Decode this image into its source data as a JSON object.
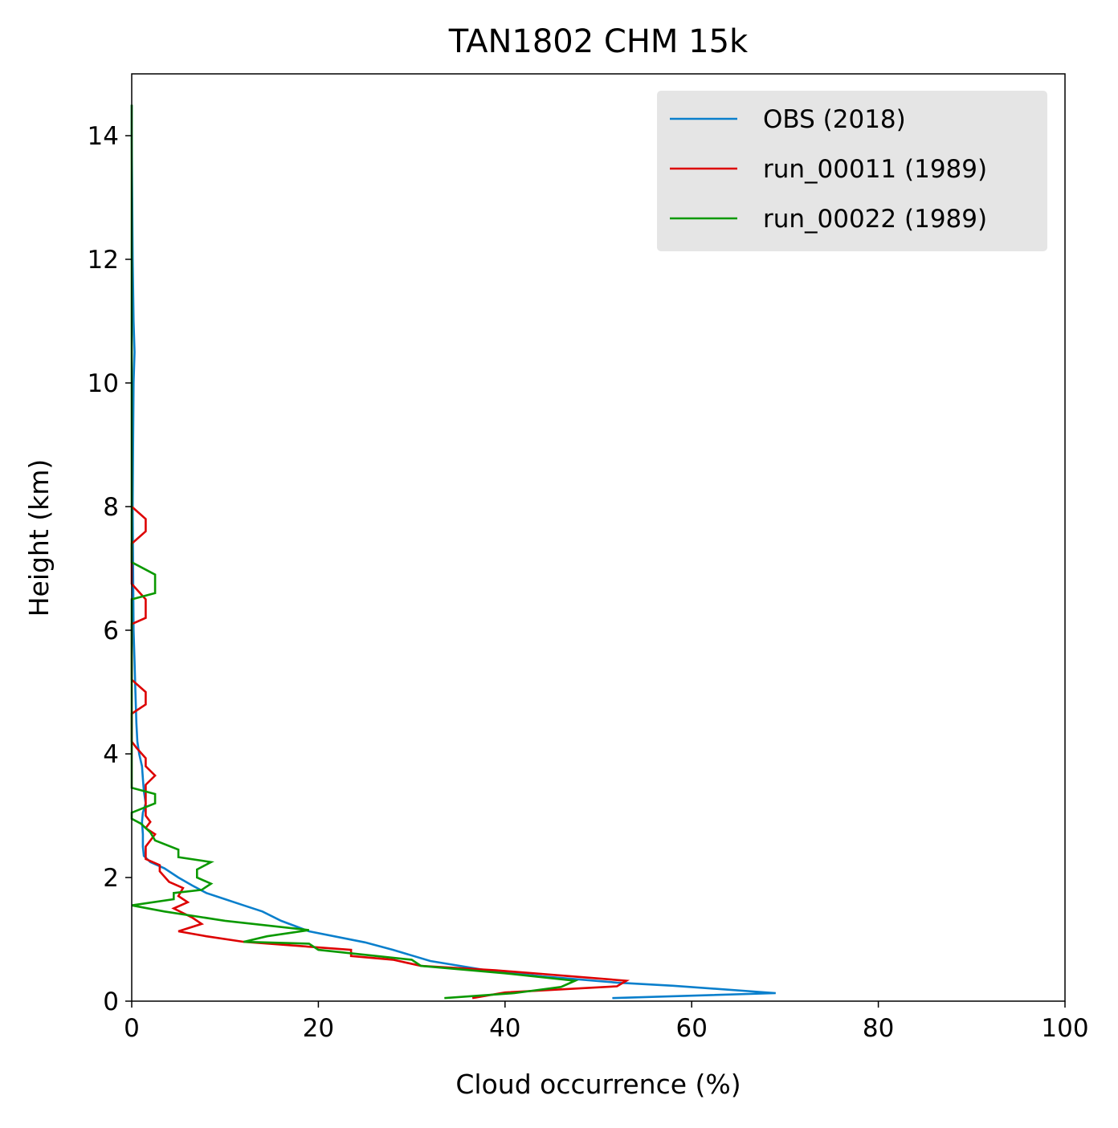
{
  "chart_data": {
    "type": "line",
    "title": "TAN1802 CHM 15k",
    "xlabel": "Cloud occurrence (%)",
    "ylabel": "Height (km)",
    "xlim": [
      0,
      100
    ],
    "ylim": [
      0,
      15
    ],
    "x_ticks": [
      0,
      20,
      40,
      60,
      80,
      100
    ],
    "y_ticks": [
      0,
      2,
      4,
      6,
      8,
      10,
      12,
      14
    ],
    "grid": false,
    "legend_position": "top-right",
    "series": [
      {
        "name": "OBS (2018)",
        "color": "#0a7fcc",
        "points": [
          [
            51.5,
            0.05
          ],
          [
            69.0,
            0.13
          ],
          [
            58.0,
            0.25
          ],
          [
            52.0,
            0.3
          ],
          [
            44.0,
            0.4
          ],
          [
            38.0,
            0.5
          ],
          [
            32.0,
            0.65
          ],
          [
            28.0,
            0.83
          ],
          [
            25.0,
            0.95
          ],
          [
            19.0,
            1.13
          ],
          [
            16.0,
            1.3
          ],
          [
            14.0,
            1.45
          ],
          [
            12.0,
            1.55
          ],
          [
            10.0,
            1.65
          ],
          [
            8.0,
            1.75
          ],
          [
            6.5,
            1.87
          ],
          [
            5.0,
            2.0
          ],
          [
            3.5,
            2.15
          ],
          [
            2.0,
            2.25
          ],
          [
            1.3,
            2.35
          ],
          [
            1.2,
            2.5
          ],
          [
            1.2,
            2.7
          ],
          [
            1.1,
            2.9
          ],
          [
            1.2,
            3.05
          ],
          [
            1.5,
            3.2
          ],
          [
            1.3,
            3.4
          ],
          [
            1.2,
            3.6
          ],
          [
            1.1,
            3.8
          ],
          [
            0.8,
            4.0
          ],
          [
            0.6,
            4.2
          ],
          [
            0.5,
            4.5
          ],
          [
            0.4,
            5.0
          ],
          [
            0.3,
            5.5
          ],
          [
            0.2,
            6.0
          ],
          [
            0.15,
            7.0
          ],
          [
            0.1,
            8.0
          ],
          [
            0.15,
            9.0
          ],
          [
            0.2,
            10.0
          ],
          [
            0.3,
            10.5
          ],
          [
            0.2,
            11.0
          ],
          [
            0.1,
            12.0
          ],
          [
            0.05,
            13.0
          ],
          [
            0.0,
            14.0
          ],
          [
            0.0,
            14.5
          ]
        ]
      },
      {
        "name": "run_00011 (1989)",
        "color": "#dd0000",
        "points": [
          [
            36.5,
            0.05
          ],
          [
            40.0,
            0.14
          ],
          [
            52.0,
            0.24
          ],
          [
            53.0,
            0.33
          ],
          [
            39.0,
            0.5
          ],
          [
            31.0,
            0.57
          ],
          [
            28.0,
            0.67
          ],
          [
            23.5,
            0.73
          ],
          [
            23.5,
            0.83
          ],
          [
            12.0,
            0.96
          ],
          [
            8.0,
            1.05
          ],
          [
            5.0,
            1.13
          ],
          [
            7.5,
            1.25
          ],
          [
            6.5,
            1.35
          ],
          [
            4.5,
            1.5
          ],
          [
            6.0,
            1.6
          ],
          [
            5.0,
            1.7
          ],
          [
            5.5,
            1.83
          ],
          [
            4.0,
            1.93
          ],
          [
            3.0,
            2.1
          ],
          [
            3.0,
            2.2
          ],
          [
            1.5,
            2.3
          ],
          [
            1.5,
            2.5
          ],
          [
            2.5,
            2.7
          ],
          [
            1.5,
            2.8
          ],
          [
            2.0,
            2.9
          ],
          [
            1.5,
            3.0
          ],
          [
            1.5,
            3.2
          ],
          [
            1.5,
            3.5
          ],
          [
            2.5,
            3.65
          ],
          [
            1.5,
            3.8
          ],
          [
            1.5,
            3.93
          ],
          [
            0.5,
            4.1
          ],
          [
            0.0,
            4.2
          ],
          [
            0.0,
            4.5
          ],
          [
            0.0,
            4.65
          ],
          [
            1.5,
            4.8
          ],
          [
            1.5,
            5.0
          ],
          [
            0.0,
            5.2
          ],
          [
            0.0,
            6.1
          ],
          [
            1.5,
            6.2
          ],
          [
            1.5,
            6.5
          ],
          [
            0.0,
            6.75
          ],
          [
            0.0,
            7.4
          ],
          [
            1.5,
            7.6
          ],
          [
            1.5,
            7.8
          ],
          [
            0.0,
            8.0
          ]
        ]
      },
      {
        "name": "run_00022 (1989)",
        "color": "#0a9900",
        "points": [
          [
            33.5,
            0.05
          ],
          [
            41.0,
            0.13
          ],
          [
            46.0,
            0.23
          ],
          [
            47.5,
            0.33
          ],
          [
            40.0,
            0.45
          ],
          [
            31.0,
            0.57
          ],
          [
            30.0,
            0.67
          ],
          [
            20.0,
            0.83
          ],
          [
            19.0,
            0.93
          ],
          [
            12.0,
            0.96
          ],
          [
            14.5,
            1.05
          ],
          [
            19.0,
            1.15
          ],
          [
            10.0,
            1.3
          ],
          [
            3.5,
            1.45
          ],
          [
            0.0,
            1.55
          ],
          [
            4.5,
            1.65
          ],
          [
            4.5,
            1.75
          ],
          [
            7.5,
            1.8
          ],
          [
            8.5,
            1.9
          ],
          [
            7.0,
            2.0
          ],
          [
            7.0,
            2.13
          ],
          [
            8.5,
            2.25
          ],
          [
            5.0,
            2.33
          ],
          [
            5.0,
            2.45
          ],
          [
            2.5,
            2.6
          ],
          [
            2.0,
            2.73
          ],
          [
            1.0,
            2.87
          ],
          [
            0.0,
            2.95
          ],
          [
            0.0,
            3.05
          ],
          [
            2.5,
            3.2
          ],
          [
            2.5,
            3.35
          ],
          [
            0.0,
            3.45
          ],
          [
            0.0,
            6.5
          ],
          [
            2.5,
            6.6
          ],
          [
            2.5,
            6.9
          ],
          [
            0.0,
            7.1
          ],
          [
            0.0,
            14.0
          ],
          [
            0.0,
            14.5
          ]
        ]
      }
    ]
  }
}
